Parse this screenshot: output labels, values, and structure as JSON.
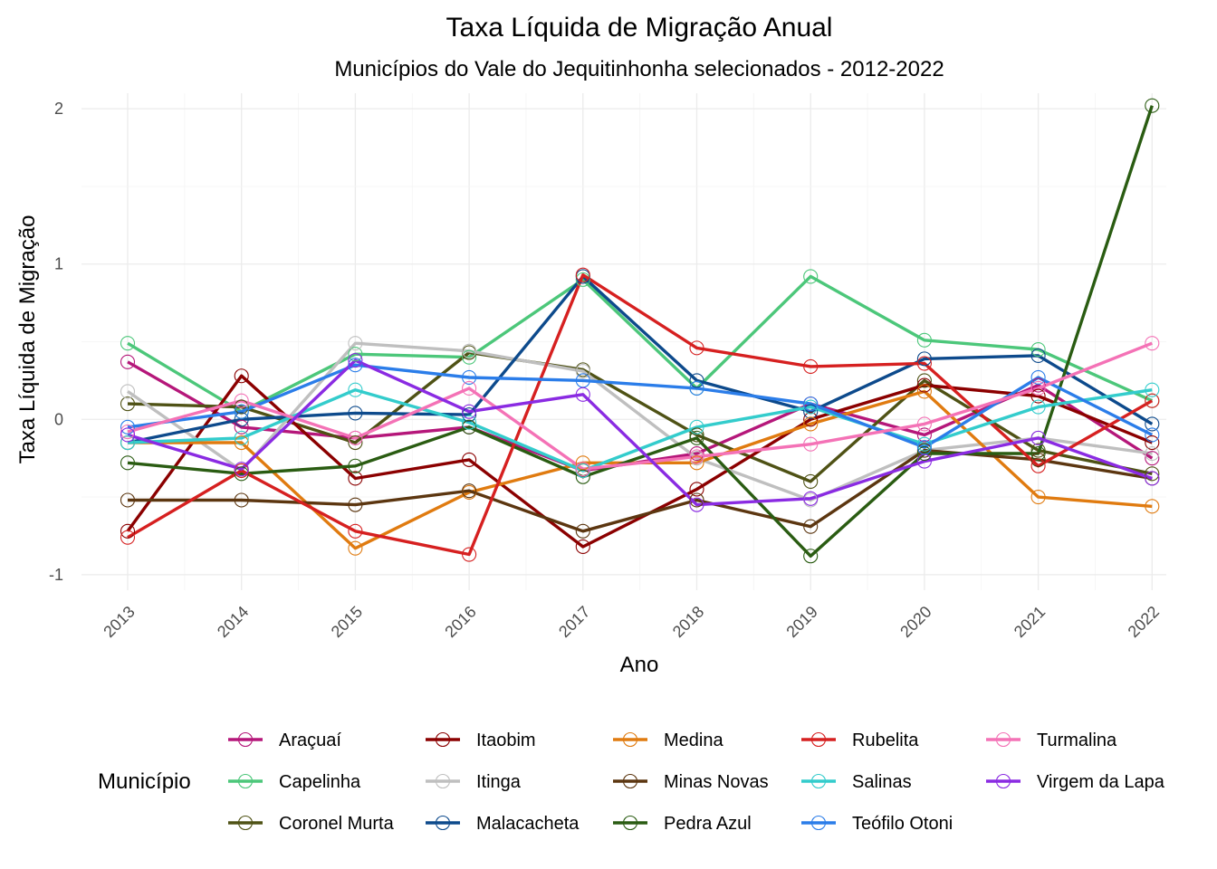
{
  "chart_data": {
    "type": "line",
    "title": "Taxa Líquida de Migração Anual",
    "subtitle": "Municípios do Vale do Jequitinhonha selecionados - 2012-2022",
    "xlabel": "Ano",
    "ylabel": "Taxa Líquida de Migração",
    "x": [
      "2013",
      "2014",
      "2015",
      "2016",
      "2017",
      "2018",
      "2019",
      "2020",
      "2021",
      "2022"
    ],
    "yticks": [
      "-1",
      "0",
      "1",
      "2"
    ],
    "ylim": [
      -1.1,
      2.1
    ],
    "grid": true,
    "legend_title": "Município",
    "legend_position": "bottom",
    "series": [
      {
        "name": "Araçuaí",
        "color": "#b5177a",
        "values": [
          0.37,
          -0.05,
          -0.12,
          -0.05,
          -0.33,
          -0.22,
          0.1,
          -0.1,
          0.22,
          -0.25
        ]
      },
      {
        "name": "Capelinha",
        "color": "#4cc77a",
        "values": [
          0.49,
          0.05,
          0.42,
          0.4,
          0.9,
          0.2,
          0.92,
          0.51,
          0.45,
          0.12
        ]
      },
      {
        "name": "Coronel Murta",
        "color": "#4f5215",
        "values": [
          0.1,
          0.08,
          -0.15,
          0.43,
          0.32,
          -0.1,
          -0.4,
          0.25,
          -0.2,
          -0.35
        ]
      },
      {
        "name": "Itaobim",
        "color": "#8b0000",
        "values": [
          -0.72,
          0.28,
          -0.38,
          -0.26,
          -0.82,
          -0.45,
          0.0,
          0.22,
          0.15,
          -0.15
        ]
      },
      {
        "name": "Itinga",
        "color": "#bfbfbf",
        "values": [
          0.18,
          -0.33,
          0.49,
          0.44,
          0.31,
          -0.25,
          -0.52,
          -0.2,
          -0.12,
          -0.22
        ]
      },
      {
        "name": "Malacacheta",
        "color": "#0d4a8c",
        "values": [
          -0.15,
          0.0,
          0.04,
          0.03,
          0.92,
          0.25,
          0.05,
          0.39,
          0.41,
          -0.03
        ]
      },
      {
        "name": "Medina",
        "color": "#e07b10",
        "values": [
          -0.15,
          -0.15,
          -0.83,
          -0.47,
          -0.28,
          -0.28,
          -0.03,
          0.18,
          -0.5,
          -0.56
        ]
      },
      {
        "name": "Minas Novas",
        "color": "#5c3610",
        "values": [
          -0.52,
          -0.52,
          -0.55,
          -0.46,
          -0.72,
          -0.52,
          -0.69,
          -0.2,
          -0.26,
          -0.38
        ]
      },
      {
        "name": "Pedra Azul",
        "color": "#2a5c12",
        "values": [
          -0.28,
          -0.35,
          -0.3,
          -0.05,
          -0.37,
          -0.12,
          -0.88,
          -0.22,
          -0.22,
          2.02
        ]
      },
      {
        "name": "Rubelita",
        "color": "#d62020",
        "values": [
          -0.76,
          -0.33,
          -0.72,
          -0.87,
          0.93,
          0.46,
          0.34,
          0.36,
          -0.3,
          0.12
        ]
      },
      {
        "name": "Salinas",
        "color": "#33cccc",
        "values": [
          -0.15,
          -0.12,
          0.19,
          -0.02,
          -0.33,
          -0.05,
          0.08,
          -0.16,
          0.08,
          0.19
        ]
      },
      {
        "name": "Teófilo Otoni",
        "color": "#2b7de9",
        "values": [
          -0.05,
          0.05,
          0.35,
          0.27,
          0.25,
          0.2,
          0.1,
          -0.18,
          0.27,
          -0.1
        ]
      },
      {
        "name": "Turmalina",
        "color": "#f472b6",
        "values": [
          -0.08,
          0.12,
          -0.12,
          0.2,
          -0.32,
          -0.24,
          -0.16,
          -0.03,
          0.2,
          0.49
        ]
      },
      {
        "name": "Virgem da Lapa",
        "color": "#8a2be2",
        "values": [
          -0.1,
          -0.32,
          0.38,
          0.05,
          0.16,
          -0.55,
          -0.51,
          -0.27,
          -0.12,
          -0.38
        ]
      }
    ]
  }
}
